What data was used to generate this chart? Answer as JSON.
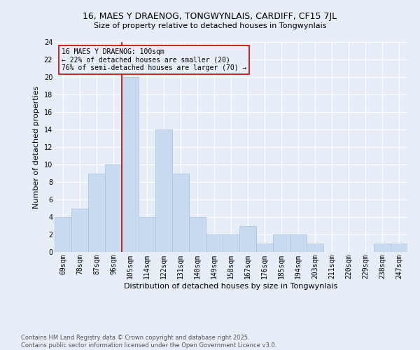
{
  "title1": "16, MAES Y DRAENOG, TONGWYNLAIS, CARDIFF, CF15 7JL",
  "title2": "Size of property relative to detached houses in Tongwynlais",
  "xlabel": "Distribution of detached houses by size in Tongwynlais",
  "ylabel": "Number of detached properties",
  "categories": [
    "69sqm",
    "78sqm",
    "87sqm",
    "96sqm",
    "105sqm",
    "114sqm",
    "122sqm",
    "131sqm",
    "140sqm",
    "149sqm",
    "158sqm",
    "167sqm",
    "176sqm",
    "185sqm",
    "194sqm",
    "203sqm",
    "211sqm",
    "220sqm",
    "229sqm",
    "238sqm",
    "247sqm"
  ],
  "values": [
    4,
    5,
    9,
    10,
    20,
    4,
    14,
    9,
    4,
    2,
    2,
    3,
    1,
    2,
    2,
    1,
    0,
    0,
    0,
    1,
    1
  ],
  "bar_color": "#c8daf0",
  "bar_edge_color": "#a8c0e0",
  "vline_color": "#cc0000",
  "ylim": [
    0,
    24
  ],
  "yticks": [
    0,
    2,
    4,
    6,
    8,
    10,
    12,
    14,
    16,
    18,
    20,
    22,
    24
  ],
  "annotation_box_text": "16 MAES Y DRAENOG: 100sqm\n← 22% of detached houses are smaller (20)\n76% of semi-detached houses are larger (70) →",
  "annotation_box_color": "#cc0000",
  "footer": "Contains HM Land Registry data © Crown copyright and database right 2025.\nContains public sector information licensed under the Open Government Licence v3.0.",
  "background_color": "#e8eef8",
  "grid_color": "#ffffff",
  "title1_fontsize": 9,
  "title2_fontsize": 8,
  "xlabel_fontsize": 8,
  "ylabel_fontsize": 8,
  "tick_fontsize": 7,
  "annot_fontsize": 7,
  "footer_fontsize": 6
}
